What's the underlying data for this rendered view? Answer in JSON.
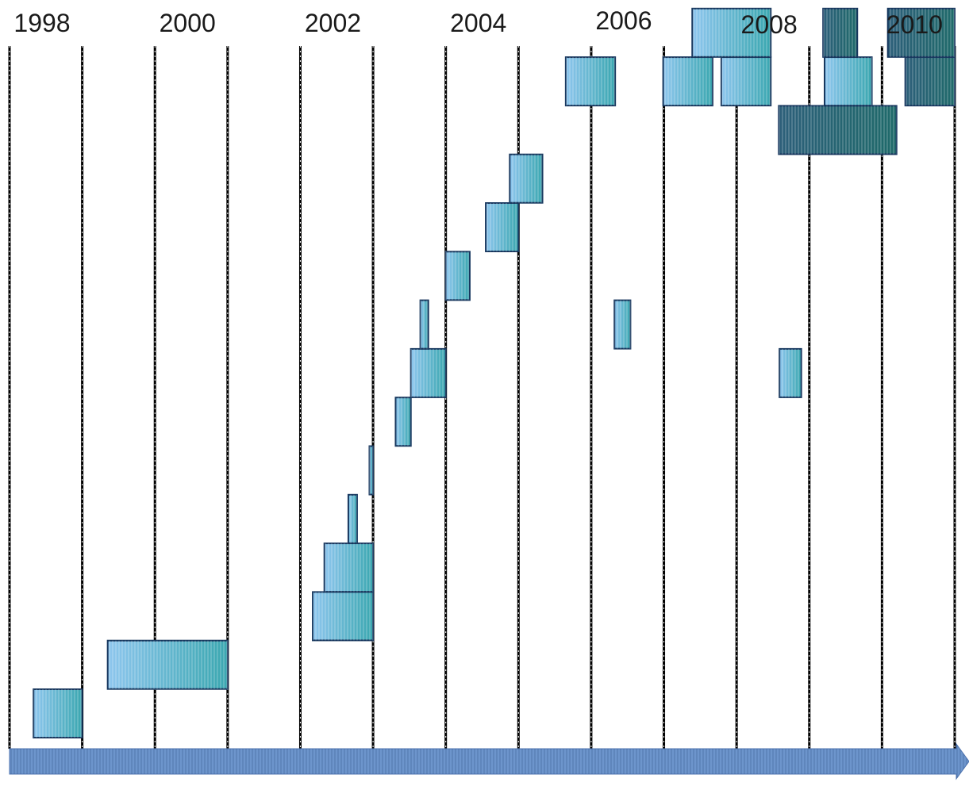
{
  "chart_data": {
    "type": "bar",
    "orientation": "horizontal",
    "style": "gantt-timeline",
    "x_axis": {
      "unit": "year",
      "range": [
        1998.0,
        2011.0
      ],
      "tick_labels": [
        "1998",
        "2000",
        "2002",
        "2004",
        "2006",
        "2008",
        "2010"
      ],
      "gridlines": "dashed vertical, every year"
    },
    "arrow_axis": true,
    "colors": {
      "bar_light": "#8ec6ee",
      "bar_teal": "#3aa7b0",
      "bar_dark": "#2d5f7a",
      "bar_dark_end": "#1f6a6a",
      "bar_stroke": "#17375e",
      "grid": "#000000",
      "arrow": "#6d95cc"
    },
    "bars": [
      {
        "row": 1,
        "start": 1998.33,
        "end": 1999.0,
        "variant": "light"
      },
      {
        "row": 2,
        "start": 1999.35,
        "end": 2001.0,
        "variant": "light"
      },
      {
        "row": 3,
        "start": 2002.17,
        "end": 2003.0,
        "variant": "light"
      },
      {
        "row": 4,
        "start": 2002.33,
        "end": 2003.0,
        "variant": "light"
      },
      {
        "row": 5,
        "start": 2002.66,
        "end": 2002.78,
        "variant": "light"
      },
      {
        "row": 6,
        "start": 2002.95,
        "end": 2003.0,
        "variant": "light"
      },
      {
        "row": 7,
        "start": 2003.31,
        "end": 2003.52,
        "variant": "light"
      },
      {
        "row": 8,
        "start": 2003.52,
        "end": 2004.0,
        "variant": "light"
      },
      {
        "row": 9,
        "start": 2003.65,
        "end": 2003.76,
        "variant": "light"
      },
      {
        "row": 8,
        "start": 2008.59,
        "end": 2008.89,
        "variant": "light"
      },
      {
        "row": 9,
        "start": 2006.32,
        "end": 2006.54,
        "variant": "light"
      },
      {
        "row": 10,
        "start": 2004.0,
        "end": 2004.33,
        "variant": "light"
      },
      {
        "row": 11,
        "start": 2004.55,
        "end": 2005.0,
        "variant": "light"
      },
      {
        "row": 12,
        "start": 2004.88,
        "end": 2005.33,
        "variant": "light"
      },
      {
        "row": 13,
        "start": 2008.58,
        "end": 2010.2,
        "variant": "dark"
      },
      {
        "row": 14,
        "start": 2005.65,
        "end": 2006.33,
        "variant": "light"
      },
      {
        "row": 14,
        "start": 2006.99,
        "end": 2007.67,
        "variant": "light"
      },
      {
        "row": 14,
        "start": 2007.79,
        "end": 2008.47,
        "variant": "light"
      },
      {
        "row": 14,
        "start": 2009.21,
        "end": 2009.86,
        "variant": "light"
      },
      {
        "row": 14,
        "start": 2010.32,
        "end": 2011.0,
        "variant": "dark"
      },
      {
        "row": 15,
        "start": 2007.39,
        "end": 2008.47,
        "variant": "light"
      },
      {
        "row": 15,
        "start": 2009.19,
        "end": 2009.66,
        "variant": "dark"
      },
      {
        "row": 15,
        "start": 2010.08,
        "end": 2011.0,
        "variant": "dark"
      }
    ]
  }
}
